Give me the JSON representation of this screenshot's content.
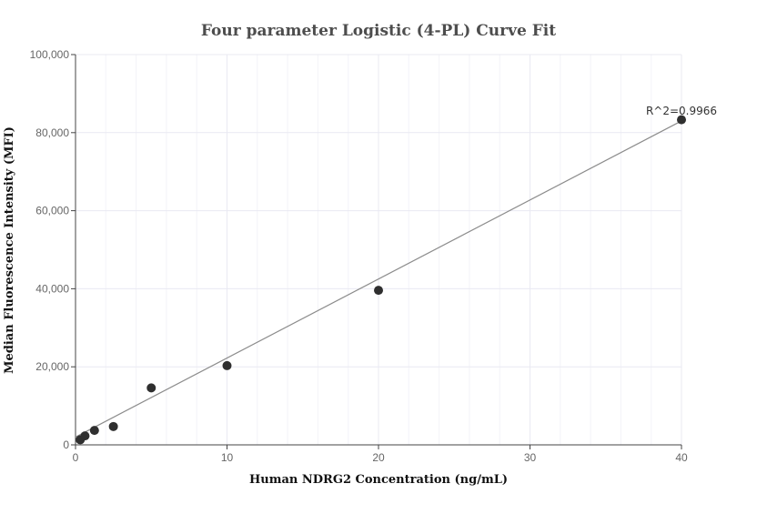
{
  "chart_data": {
    "type": "scatter",
    "title": "Four parameter Logistic (4-PL) Curve Fit",
    "xlabel": "Human NDRG2 Concentration (ng/mL)",
    "ylabel": "Median Fluorescence Intensity (MFI)",
    "xlim": [
      0,
      40
    ],
    "ylim": [
      0,
      100000
    ],
    "x_ticks": [
      0,
      10,
      20,
      30,
      40
    ],
    "x_tick_labels": [
      "0",
      "10",
      "20",
      "30",
      "40"
    ],
    "y_ticks": [
      0,
      20000,
      40000,
      60000,
      80000,
      100000
    ],
    "y_tick_labels": [
      "0",
      "20,000",
      "40,000",
      "60,000",
      "80,000",
      "100,000"
    ],
    "grid": true,
    "points": [
      {
        "x": 0.3125,
        "y": 1300
      },
      {
        "x": 0.625,
        "y": 2300
      },
      {
        "x": 1.25,
        "y": 3700
      },
      {
        "x": 2.5,
        "y": 4700
      },
      {
        "x": 5,
        "y": 14600
      },
      {
        "x": 10,
        "y": 20300
      },
      {
        "x": 20,
        "y": 39600
      },
      {
        "x": 40,
        "y": 83300
      }
    ],
    "fit_line": {
      "x": [
        0,
        40
      ],
      "y": [
        2000,
        83000
      ]
    },
    "annotation": "R^2=0.9966",
    "colors": {
      "points": "#2f2f2f",
      "fit_line": "#8c8c8c",
      "grid": "#e9e9f2",
      "axis": "#444444"
    }
  }
}
